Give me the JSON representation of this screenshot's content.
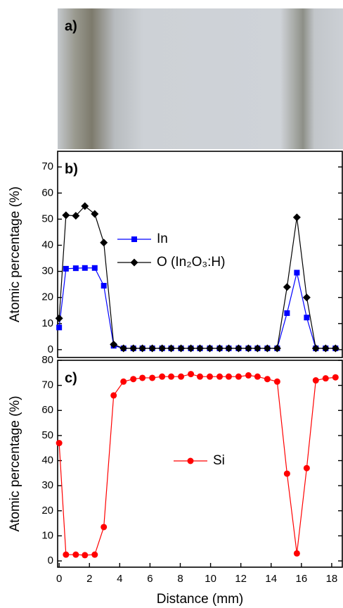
{
  "image": {
    "label": "a)"
  },
  "chart_data": [
    {
      "type": "line",
      "label": "b)",
      "ylabel": "Atomic percentage (%)",
      "legend": "center-left",
      "x": [
        0,
        0.45,
        1.1,
        1.7,
        2.35,
        2.95,
        3.6,
        4.25,
        4.9,
        5.5,
        6.15,
        6.8,
        7.4,
        8.05,
        8.7,
        9.3,
        9.95,
        10.6,
        11.2,
        11.85,
        12.5,
        13.1,
        13.75,
        14.4,
        15.05,
        15.7,
        16.35,
        16.95,
        17.6,
        18.25
      ],
      "series": [
        {
          "name": "In",
          "color": "#0000ff",
          "marker": "square",
          "values": [
            8.5,
            31,
            31.2,
            31.3,
            31.3,
            24.5,
            1.5,
            0.5,
            0.5,
            0.5,
            0.5,
            0.5,
            0.5,
            0.5,
            0.5,
            0.5,
            0.5,
            0.5,
            0.5,
            0.5,
            0.5,
            0.5,
            0.5,
            0.5,
            14,
            29.5,
            12.3,
            0.5,
            0.5,
            0.5
          ]
        },
        {
          "name": "O (In₂O₃:H)",
          "color": "#000000",
          "marker": "diamond",
          "values": [
            12,
            51.5,
            51.3,
            55,
            52,
            41,
            2,
            0.5,
            0.5,
            0.5,
            0.5,
            0.5,
            0.5,
            0.5,
            0.5,
            0.5,
            0.5,
            0.5,
            0.5,
            0.5,
            0.5,
            0.5,
            0.5,
            0.5,
            24,
            50.7,
            20,
            0.5,
            0.5,
            0.5
          ]
        }
      ],
      "xlim": [
        -0.1,
        18.7
      ],
      "ylim": [
        -3,
        76
      ],
      "yticks": [
        0,
        10,
        20,
        30,
        40,
        50,
        60,
        70
      ]
    },
    {
      "type": "line",
      "label": "c)",
      "ylabel": "Atomic percentage (%)",
      "xlabel": "Distance (mm)",
      "legend": "center",
      "x": [
        0,
        0.45,
        1.1,
        1.7,
        2.35,
        2.95,
        3.6,
        4.25,
        4.9,
        5.5,
        6.15,
        6.8,
        7.4,
        8.05,
        8.7,
        9.3,
        9.95,
        10.6,
        11.2,
        11.85,
        12.5,
        13.1,
        13.75,
        14.4,
        15.05,
        15.7,
        16.35,
        16.95,
        17.6,
        18.25
      ],
      "series": [
        {
          "name": "Si",
          "color": "#ff0000",
          "marker": "circle",
          "values": [
            47,
            2.5,
            2.5,
            2.3,
            2.5,
            13.5,
            66,
            71.5,
            72.5,
            73,
            73,
            73.5,
            73.5,
            73.5,
            74.5,
            73.5,
            73.5,
            73.5,
            73.5,
            73.5,
            74,
            73.5,
            72.5,
            71.5,
            34.8,
            3,
            37,
            72,
            72.8,
            73.2
          ]
        }
      ],
      "xlim": [
        -0.1,
        18.7
      ],
      "ylim": [
        -2.5,
        80
      ],
      "yticks": [
        0,
        10,
        20,
        30,
        40,
        50,
        60,
        70,
        80
      ],
      "xticks": [
        0,
        2,
        4,
        6,
        8,
        10,
        12,
        14,
        16,
        18
      ]
    }
  ]
}
